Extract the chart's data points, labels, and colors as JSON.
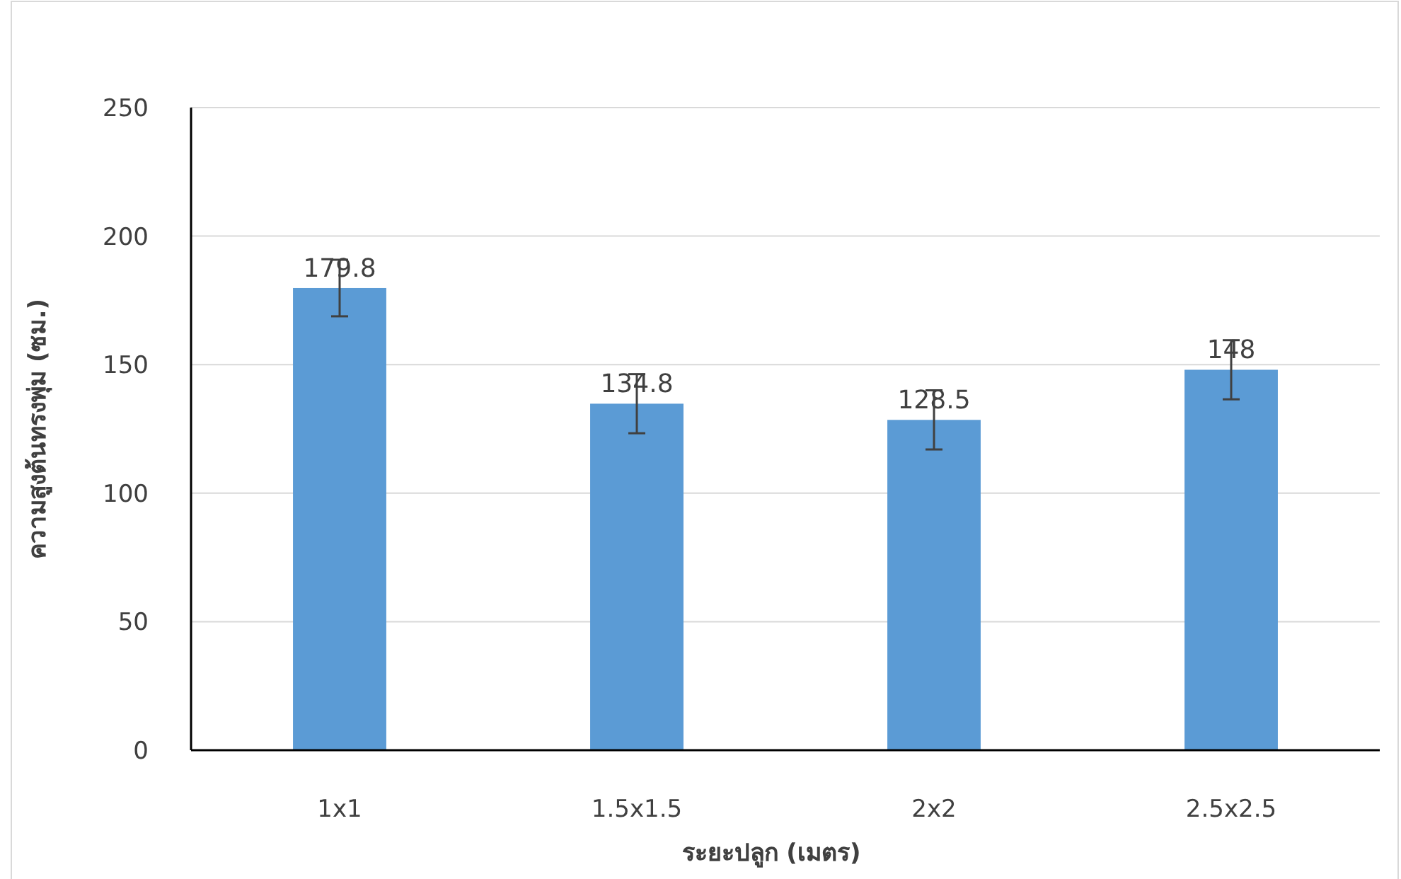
{
  "chart_data": {
    "type": "bar",
    "xlabel": "ระยะปลูก (เมตร)",
    "ylabel": "ความสูงต้นทรงพุ่ม (ซม.)",
    "categories": [
      "1x1",
      "1.5x1.5",
      "2x2",
      "2.5x2.5"
    ],
    "values": [
      179.8,
      134.8,
      128.5,
      148
    ],
    "errors": [
      11,
      11.5,
      11.5,
      11.5
    ],
    "color": "#5b9bd5",
    "ylim": [
      0,
      250
    ],
    "yticks": [
      0,
      50,
      100,
      150,
      200,
      250
    ],
    "grid": "y",
    "data_labels": true
  }
}
